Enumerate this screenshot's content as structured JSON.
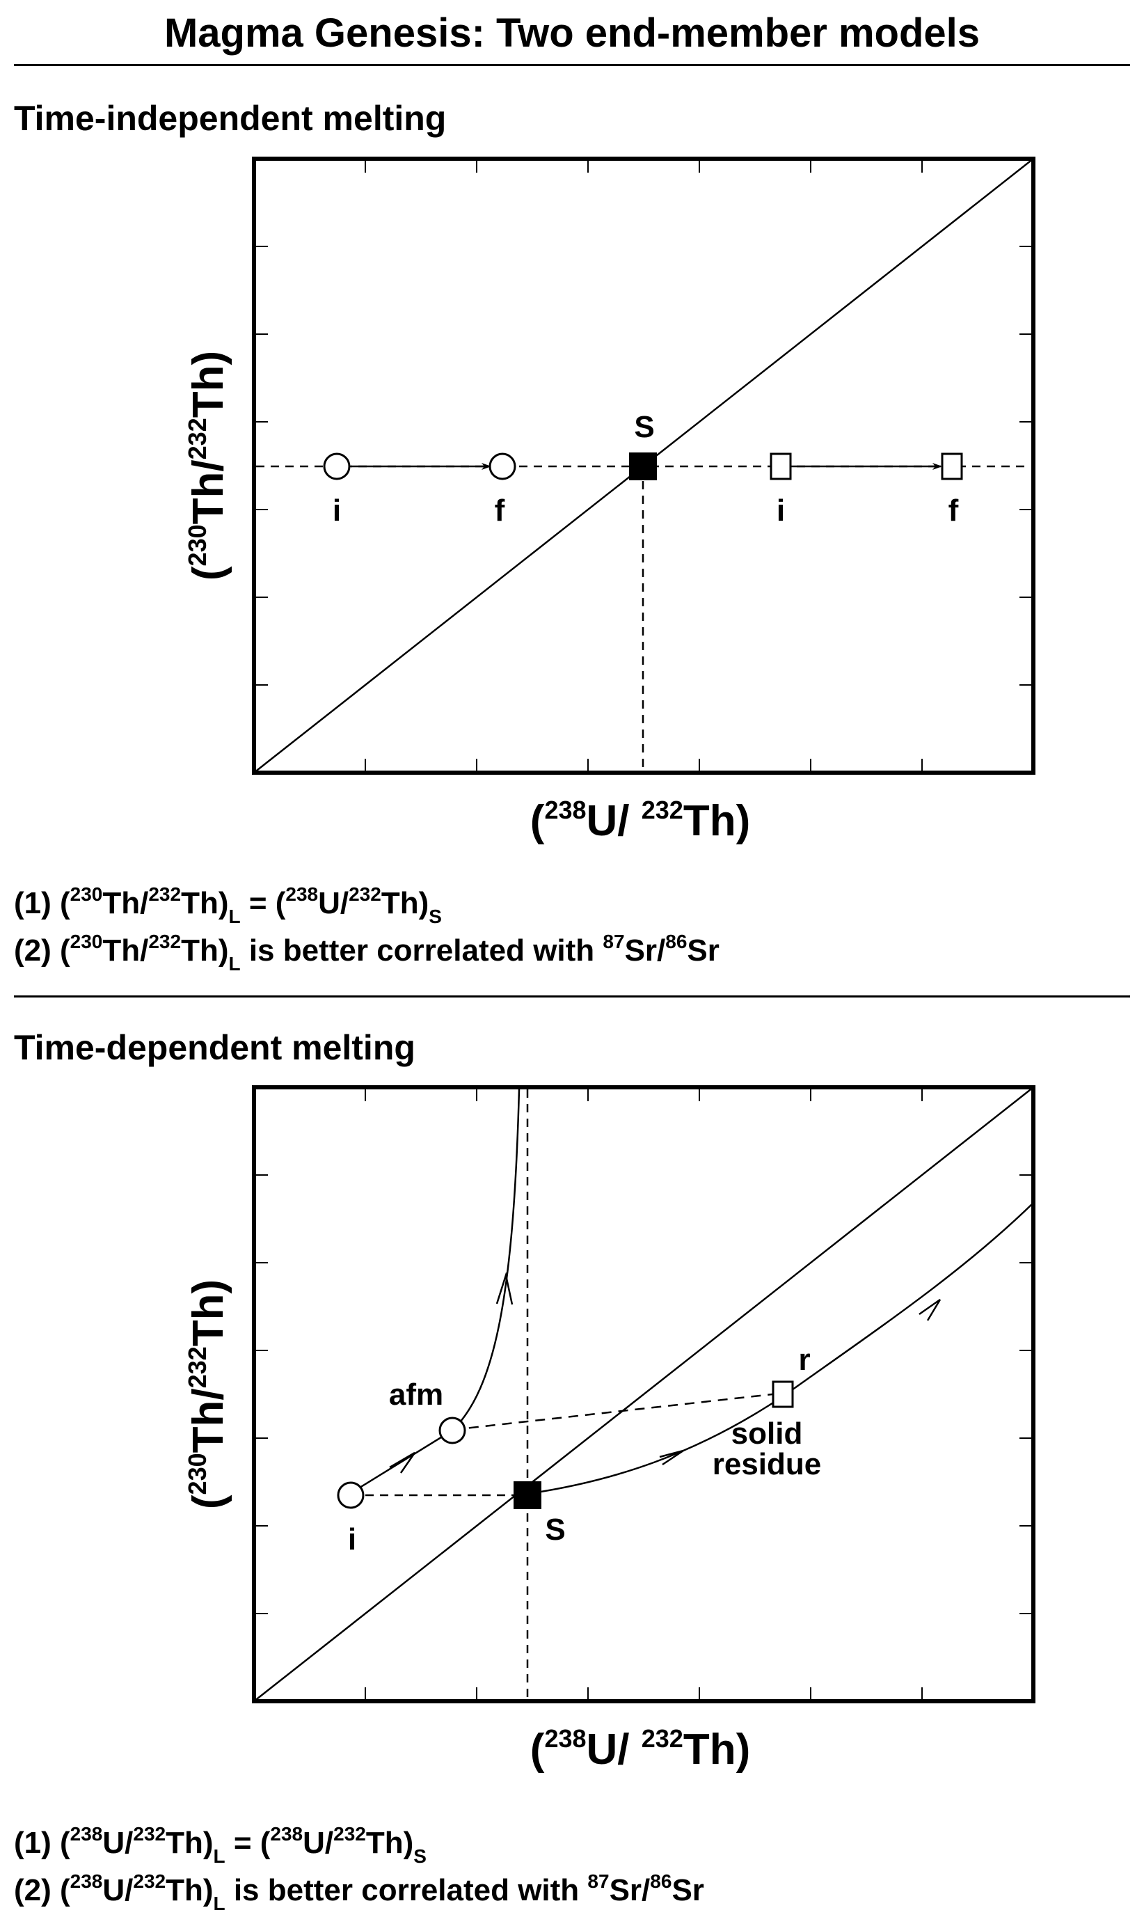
{
  "page": {
    "title": "Magma Genesis: Two end-member models"
  },
  "panel_top": {
    "heading": "Time-independent melting",
    "xlabel": {
      "open": "(",
      "sup1": "238",
      "mid": "U/ ",
      "sup2": "232",
      "close": "Th)"
    },
    "ylabel": {
      "open": "(",
      "sup1": "230",
      "mid": "Th/",
      "sup2": "232",
      "close": "Th)"
    },
    "labels": {
      "i1": "i",
      "f1": "f",
      "s": "S",
      "i2": "i",
      "f2": "f"
    },
    "equations": [
      {
        "num": "(1) (",
        "a_sup": "230",
        "a": "Th/",
        "b_sup": "232",
        "b": "Th)",
        "a_sub": "L",
        "mid": " = (",
        "c_sup": "238",
        "c": "U/",
        "d_sup": "232",
        "d": "Th)",
        "c_sub": "S"
      },
      {
        "num": "(2) (",
        "a_sup": "230",
        "a": "Th/",
        "b_sup": "232",
        "b": "Th)",
        "a_sub": "L",
        "mid": " is better correlated with ",
        "c_sup": "87",
        "c": "Sr/",
        "d_sup": "86",
        "d": "Sr"
      }
    ]
  },
  "panel_bottom": {
    "heading": "Time-dependent melting",
    "xlabel": {
      "open": "(",
      "sup1": "238",
      "mid": "U/ ",
      "sup2": "232",
      "close": "Th)"
    },
    "ylabel": {
      "open": "(",
      "sup1": "230",
      "mid": "Th/",
      "sup2": "232",
      "close": "Th)"
    },
    "labels": {
      "i": "i",
      "afm": "afm",
      "s": "S",
      "r": "r",
      "solid": "solid",
      "residue": "residue"
    },
    "equations": [
      {
        "num": "(1) (",
        "a_sup": "238",
        "a": "U/",
        "b_sup": "232",
        "b": "Th)",
        "a_sub": "L",
        "mid": " = (",
        "c_sup": "238",
        "c": "U/",
        "d_sup": "232",
        "d": "Th)",
        "c_sub": "S"
      },
      {
        "num": "(2) (",
        "a_sup": "238",
        "a": "U/",
        "b_sup": "232",
        "b": "Th)",
        "a_sub": "L",
        "mid": " is better correlated with ",
        "c_sup": "87",
        "c": "Sr/",
        "d_sup": "86",
        "d": "Sr"
      }
    ]
  }
}
